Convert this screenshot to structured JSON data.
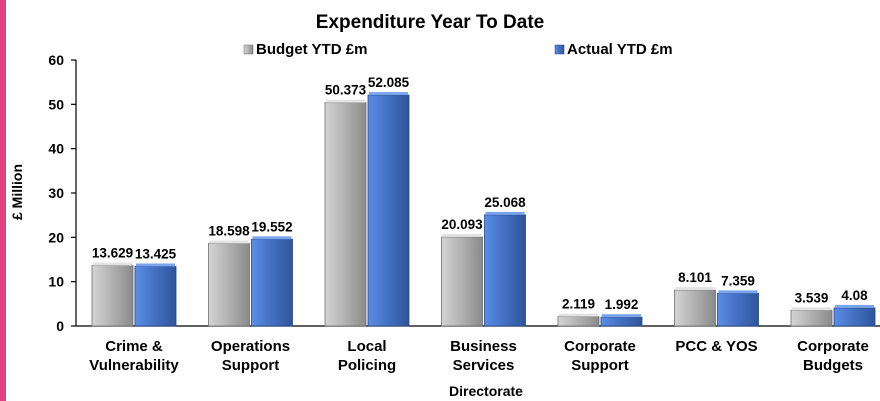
{
  "chart_data": {
    "type": "bar",
    "title": "Expenditure Year To Date",
    "xlabel": "Directorate",
    "ylabel": "£ Million",
    "ylim": [
      0,
      60
    ],
    "yticks": [
      "0",
      "10",
      "20",
      "30",
      "40",
      "50",
      "60"
    ],
    "grid": false,
    "legend_position": "top",
    "categories": [
      [
        "Crime &",
        "Vulnerability"
      ],
      [
        "Operations",
        "Support"
      ],
      [
        "Local",
        "Policing"
      ],
      [
        "Business",
        "Services"
      ],
      [
        "Corporate",
        "Support"
      ],
      [
        "PCC & YOS"
      ],
      [
        "Corporate",
        "Budgets"
      ]
    ],
    "series": [
      {
        "name": "Budget YTD £m",
        "color": "#a6a6a6",
        "values": [
          13.629,
          18.598,
          50.373,
          20.093,
          2.119,
          8.101,
          3.539
        ],
        "labels": [
          "13.629",
          "18.598",
          "50.373",
          "20.093",
          "2.119",
          "8.101",
          "3.539"
        ]
      },
      {
        "name": "Actual YTD £m",
        "color": "#4472c4",
        "values": [
          13.425,
          19.552,
          52.085,
          25.068,
          1.992,
          7.359,
          4.08
        ],
        "labels": [
          "13.425",
          "19.552",
          "52.085",
          "25.068",
          "1.992",
          "7.359",
          "4.08"
        ]
      }
    ]
  },
  "accent_color": "#e0407f"
}
